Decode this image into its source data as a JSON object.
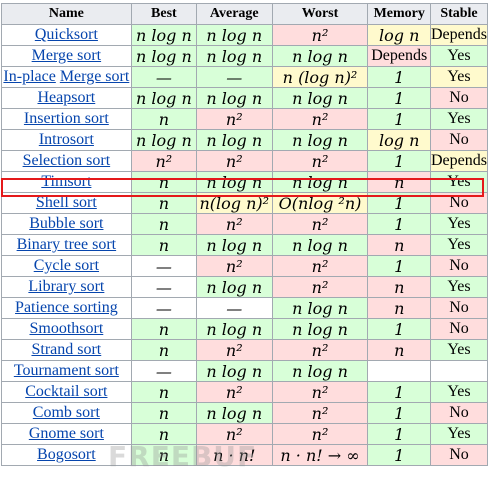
{
  "headers": [
    "Name",
    "Best",
    "Average",
    "Worst",
    "Memory",
    "Stable"
  ],
  "rows": [
    {
      "name": [
        "Quicksort"
      ],
      "best": "n log n",
      "average": "n log n",
      "worst": "n²",
      "memory": "log n",
      "stable": "Depends",
      "c": [
        "g",
        "g",
        "r",
        "y",
        "y"
      ]
    },
    {
      "name": [
        "Merge sort"
      ],
      "best": "n log n",
      "average": "n log n",
      "worst": "n log n",
      "memory": "Depends",
      "stable": "Yes",
      "c": [
        "g",
        "g",
        "g",
        "r",
        "g"
      ]
    },
    {
      "name": [
        "In-place",
        " ",
        "Merge sort"
      ],
      "best": "—",
      "average": "—",
      "worst": "n (log n)²",
      "memory": "1",
      "stable": "Yes",
      "c": [
        "g",
        "g",
        "y",
        "g",
        "y"
      ]
    },
    {
      "name": [
        "Heapsort"
      ],
      "best": "n log n",
      "average": "n log n",
      "worst": "n log n",
      "memory": "1",
      "stable": "No",
      "c": [
        "g",
        "g",
        "g",
        "g",
        "r"
      ]
    },
    {
      "name": [
        "Insertion sort"
      ],
      "best": "n",
      "average": "n²",
      "worst": "n²",
      "memory": "1",
      "stable": "Yes",
      "c": [
        "g",
        "r",
        "r",
        "g",
        "g"
      ]
    },
    {
      "name": [
        "Introsort"
      ],
      "best": "n log n",
      "average": "n log n",
      "worst": "n log n",
      "memory": "log n",
      "stable": "No",
      "c": [
        "g",
        "g",
        "g",
        "y",
        "r"
      ]
    },
    {
      "name": [
        "Selection sort"
      ],
      "best": "n²",
      "average": "n²",
      "worst": "n²",
      "memory": "1",
      "stable": "Depends",
      "c": [
        "r",
        "r",
        "r",
        "g",
        "y"
      ]
    },
    {
      "name": [
        "Timsort"
      ],
      "best": "n",
      "average": "n log n",
      "worst": "n log n",
      "memory": "n",
      "stable": "Yes",
      "c": [
        "g",
        "g",
        "g",
        "r",
        "g"
      ]
    },
    {
      "name": [
        "Shell sort"
      ],
      "best": "n",
      "average": "n(log n)²",
      "worst": "O(nlog ²n)",
      "memory": "1",
      "stable": "No",
      "c": [
        "g",
        "y",
        "y",
        "g",
        "r"
      ]
    },
    {
      "name": [
        "Bubble sort"
      ],
      "best": "n",
      "average": "n²",
      "worst": "n²",
      "memory": "1",
      "stable": "Yes",
      "c": [
        "g",
        "r",
        "r",
        "g",
        "g"
      ]
    },
    {
      "name": [
        "Binary tree sort"
      ],
      "best": "n",
      "average": "n log n",
      "worst": "n log n",
      "memory": "n",
      "stable": "Yes",
      "c": [
        "g",
        "g",
        "g",
        "r",
        "g"
      ]
    },
    {
      "name": [
        "Cycle sort"
      ],
      "best": "—",
      "average": "n²",
      "worst": "n²",
      "memory": "1",
      "stable": "No",
      "c": [
        "w",
        "r",
        "r",
        "g",
        "r"
      ]
    },
    {
      "name": [
        "Library sort"
      ],
      "best": "—",
      "average": "n log n",
      "worst": "n²",
      "memory": "n",
      "stable": "Yes",
      "c": [
        "w",
        "g",
        "r",
        "r",
        "g"
      ]
    },
    {
      "name": [
        "Patience sorting"
      ],
      "best": "—",
      "average": "—",
      "worst": "n log n",
      "memory": "n",
      "stable": "No",
      "c": [
        "w",
        "w",
        "g",
        "r",
        "r"
      ]
    },
    {
      "name": [
        "Smoothsort"
      ],
      "best": "n",
      "average": "n log n",
      "worst": "n log n",
      "memory": "1",
      "stable": "No",
      "c": [
        "g",
        "g",
        "g",
        "g",
        "r"
      ]
    },
    {
      "name": [
        "Strand sort"
      ],
      "best": "n",
      "average": "n²",
      "worst": "n²",
      "memory": "n",
      "stable": "Yes",
      "c": [
        "g",
        "r",
        "r",
        "r",
        "g"
      ]
    },
    {
      "name": [
        "Tournament sort"
      ],
      "best": "—",
      "average": "n log n",
      "worst": "n log n",
      "memory": "",
      "stable": "",
      "c": [
        "w",
        "g",
        "g",
        "w",
        "w"
      ]
    },
    {
      "name": [
        "Cocktail sort"
      ],
      "best": "n",
      "average": "n²",
      "worst": "n²",
      "memory": "1",
      "stable": "Yes",
      "c": [
        "g",
        "r",
        "r",
        "g",
        "g"
      ]
    },
    {
      "name": [
        "Comb sort"
      ],
      "best": "n",
      "average": "n log n",
      "worst": "n²",
      "memory": "1",
      "stable": "No",
      "c": [
        "g",
        "g",
        "r",
        "g",
        "r"
      ]
    },
    {
      "name": [
        "Gnome sort"
      ],
      "best": "n",
      "average": "n²",
      "worst": "n²",
      "memory": "1",
      "stable": "Yes",
      "c": [
        "g",
        "r",
        "r",
        "g",
        "g"
      ]
    },
    {
      "name": [
        "Bogosort"
      ],
      "best": "n",
      "average": "n · n!",
      "worst": "n · n! → ∞",
      "memory": "1",
      "stable": "No",
      "c": [
        "g",
        "r",
        "r",
        "g",
        "r"
      ]
    }
  ],
  "colors": {
    "green": "#d8ffd8",
    "red": "#ffdddd",
    "yellow": "#fffacd",
    "header": "#eaecf0",
    "highlight": "#e5191b",
    "link": "#0645ad"
  },
  "watermark": "FREEBUF"
}
